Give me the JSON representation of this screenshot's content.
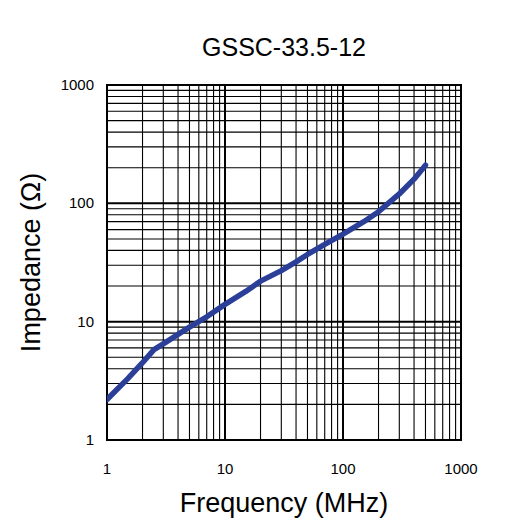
{
  "chart_data": {
    "type": "line",
    "title": "GSSC-33.5-12",
    "x_label": "Frequency (MHz)",
    "y_label": "Impedance (Ω)",
    "x": [
      1,
      1.5,
      2,
      2.5,
      3,
      4,
      5,
      7,
      10,
      15,
      20,
      30,
      40,
      50,
      70,
      100,
      150,
      200,
      300,
      400,
      500
    ],
    "series": [
      {
        "name": "GSSC-33.5-12",
        "color": "#2b3f98",
        "values": [
          2.2,
          3.3,
          4.5,
          5.8,
          6.5,
          7.8,
          9,
          11,
          14,
          18,
          22,
          27,
          32,
          37,
          45,
          55,
          70,
          85,
          120,
          160,
          210
        ]
      }
    ],
    "xlim": [
      1,
      1000
    ],
    "ylim": [
      1,
      1000
    ],
    "xticks": [
      1,
      10,
      100,
      1000
    ],
    "yticks": [
      1,
      10,
      100,
      1000
    ],
    "log": true,
    "grid": true
  }
}
